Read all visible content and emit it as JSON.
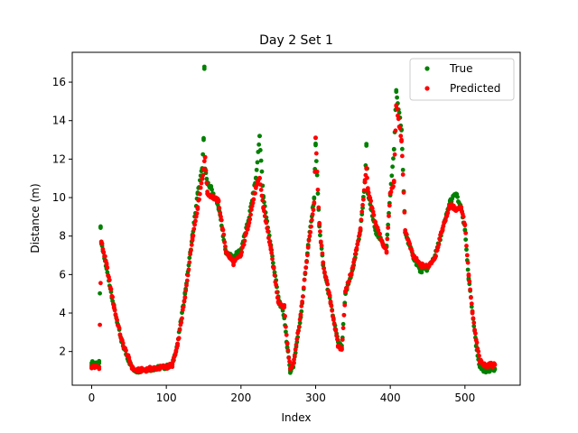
{
  "chart_data": {
    "type": "scatter",
    "title": "Day 2 Set 1",
    "xlabel": "Index",
    "ylabel": "Distance (m)",
    "xlim": [
      -26,
      574
    ],
    "ylim": [
      0.25,
      17.55
    ],
    "xticks": [
      0,
      100,
      200,
      300,
      400,
      500
    ],
    "yticks": [
      2,
      4,
      6,
      8,
      10,
      12,
      14,
      16
    ],
    "grid": false,
    "legend_position": "top-right",
    "series": [
      {
        "name": "True",
        "color": "#008000",
        "anchors": [
          [
            0,
            1.4
          ],
          [
            10,
            1.4
          ],
          [
            12,
            8.5
          ],
          [
            13,
            7.6
          ],
          [
            20,
            6.3
          ],
          [
            30,
            4.3
          ],
          [
            40,
            2.5
          ],
          [
            50,
            1.5
          ],
          [
            55,
            1.1
          ],
          [
            60,
            1.0
          ],
          [
            100,
            1.2
          ],
          [
            108,
            1.3
          ],
          [
            115,
            2.4
          ],
          [
            125,
            5.0
          ],
          [
            135,
            8.0
          ],
          [
            142,
            10.2
          ],
          [
            148,
            11.5
          ],
          [
            150,
            13.0
          ],
          [
            151,
            16.8
          ],
          [
            152,
            11.5
          ],
          [
            155,
            10.7
          ],
          [
            160,
            10.5
          ],
          [
            170,
            9.5
          ],
          [
            180,
            7.1
          ],
          [
            190,
            6.9
          ],
          [
            200,
            7.3
          ],
          [
            210,
            8.8
          ],
          [
            220,
            11.0
          ],
          [
            225,
            13.2
          ],
          [
            230,
            10.0
          ],
          [
            240,
            7.5
          ],
          [
            250,
            4.8
          ],
          [
            258,
            3.8
          ],
          [
            262,
            2.2
          ],
          [
            266,
            1.0
          ],
          [
            270,
            1.2
          ],
          [
            280,
            3.8
          ],
          [
            290,
            7.5
          ],
          [
            298,
            10.0
          ],
          [
            300,
            12.8
          ],
          [
            305,
            8.5
          ],
          [
            310,
            6.5
          ],
          [
            320,
            4.5
          ],
          [
            330,
            2.5
          ],
          [
            335,
            2.2
          ],
          [
            340,
            5.0
          ],
          [
            350,
            6.3
          ],
          [
            360,
            8.3
          ],
          [
            366,
            10.8
          ],
          [
            368,
            12.7
          ],
          [
            370,
            10.2
          ],
          [
            380,
            8.3
          ],
          [
            390,
            7.6
          ],
          [
            395,
            7.5
          ],
          [
            400,
            10.2
          ],
          [
            405,
            12.5
          ],
          [
            408,
            15.5
          ],
          [
            415,
            13.5
          ],
          [
            420,
            8.2
          ],
          [
            430,
            7.0
          ],
          [
            440,
            6.2
          ],
          [
            450,
            6.3
          ],
          [
            460,
            7.0
          ],
          [
            470,
            8.3
          ],
          [
            480,
            9.8
          ],
          [
            488,
            10.2
          ],
          [
            495,
            9.4
          ],
          [
            500,
            8.3
          ],
          [
            505,
            5.8
          ],
          [
            510,
            4.0
          ],
          [
            515,
            2.3
          ],
          [
            520,
            1.2
          ],
          [
            525,
            1.0
          ],
          [
            540,
            1.1
          ]
        ]
      },
      {
        "name": "Predicted",
        "color": "#ff0000",
        "anchors": [
          [
            0,
            1.2
          ],
          [
            10,
            1.2
          ],
          [
            13,
            7.7
          ],
          [
            20,
            6.5
          ],
          [
            30,
            4.3
          ],
          [
            40,
            2.6
          ],
          [
            50,
            1.6
          ],
          [
            55,
            1.1
          ],
          [
            60,
            1.0
          ],
          [
            100,
            1.2
          ],
          [
            108,
            1.3
          ],
          [
            115,
            2.3
          ],
          [
            125,
            4.8
          ],
          [
            135,
            7.9
          ],
          [
            142,
            9.5
          ],
          [
            148,
            11.0
          ],
          [
            150,
            11.5
          ],
          [
            152,
            12.1
          ],
          [
            155,
            10.2
          ],
          [
            160,
            10.1
          ],
          [
            170,
            9.8
          ],
          [
            180,
            7.2
          ],
          [
            190,
            6.6
          ],
          [
            200,
            7.0
          ],
          [
            210,
            8.6
          ],
          [
            220,
            10.5
          ],
          [
            225,
            11.0
          ],
          [
            230,
            9.5
          ],
          [
            240,
            7.3
          ],
          [
            250,
            4.6
          ],
          [
            258,
            4.3
          ],
          [
            262,
            2.4
          ],
          [
            266,
            1.1
          ],
          [
            270,
            1.4
          ],
          [
            280,
            3.9
          ],
          [
            290,
            7.4
          ],
          [
            298,
            9.7
          ],
          [
            300,
            13.1
          ],
          [
            305,
            8.6
          ],
          [
            310,
            6.6
          ],
          [
            320,
            4.6
          ],
          [
            330,
            2.3
          ],
          [
            335,
            2.1
          ],
          [
            340,
            5.1
          ],
          [
            350,
            6.4
          ],
          [
            360,
            8.4
          ],
          [
            366,
            10.8
          ],
          [
            368,
            11.5
          ],
          [
            370,
            10.4
          ],
          [
            380,
            8.7
          ],
          [
            390,
            7.6
          ],
          [
            395,
            7.2
          ],
          [
            400,
            10.2
          ],
          [
            405,
            10.8
          ],
          [
            408,
            14.8
          ],
          [
            415,
            13.0
          ],
          [
            420,
            8.3
          ],
          [
            430,
            7.0
          ],
          [
            440,
            6.5
          ],
          [
            450,
            6.4
          ],
          [
            460,
            6.9
          ],
          [
            470,
            8.4
          ],
          [
            480,
            9.6
          ],
          [
            488,
            9.4
          ],
          [
            495,
            9.5
          ],
          [
            500,
            8.6
          ],
          [
            505,
            6.0
          ],
          [
            510,
            4.0
          ],
          [
            515,
            2.6
          ],
          [
            520,
            1.5
          ],
          [
            525,
            1.3
          ],
          [
            540,
            1.3
          ]
        ]
      }
    ]
  }
}
